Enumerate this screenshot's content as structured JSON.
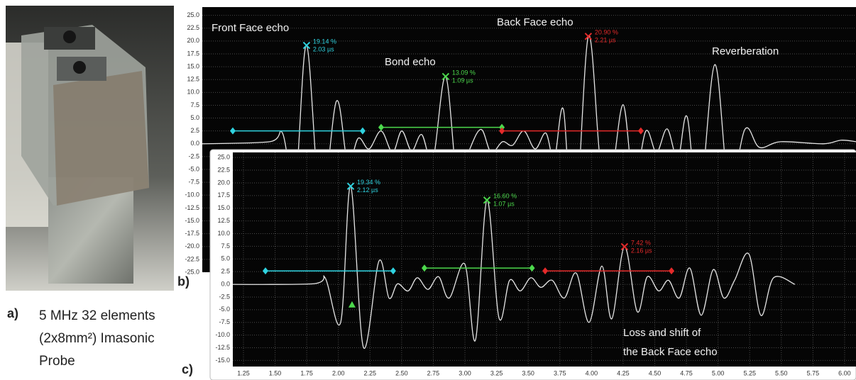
{
  "figure": {
    "a": "a)",
    "b": "b)",
    "c": "c)",
    "caption": [
      "5 MHz 32 elements",
      "(2x8mm²) Imasonic",
      "Probe"
    ]
  },
  "chart_data": [
    {
      "type": "line",
      "color": "#e6e6e6",
      "xlim": [
        0.925,
        6.09
      ],
      "ylim": [
        -25,
        26.6
      ],
      "yticks": [
        {
          "value": 25,
          "label": "25.0"
        },
        22.5,
        {
          "value": 20,
          "label": "20.0"
        },
        17.5,
        {
          "value": 15,
          "label": "15.0"
        },
        12.5,
        {
          "value": 10,
          "label": "10.0"
        },
        7.5,
        {
          "value": 5,
          "label": "5.0"
        },
        2.5,
        {
          "value": 0,
          "label": "0.0"
        },
        -2.5,
        {
          "value": -5,
          "label": "-5.0"
        },
        -7.5,
        {
          "value": -10,
          "label": "-10.0"
        },
        -12.5,
        {
          "value": -15,
          "label": "-15.0"
        },
        -17.5,
        {
          "value": -20,
          "label": "-20.0"
        },
        -22.5,
        {
          "value": -25,
          "label": "-25.0"
        }
      ],
      "grid": true,
      "x": [
        0.925,
        1.457,
        1.558,
        1.659,
        1.749,
        1.861,
        1.985,
        2.074,
        2.158,
        2.242,
        2.338,
        2.428,
        2.501,
        2.579,
        2.658,
        2.747,
        2.848,
        2.944,
        3.039,
        3.129,
        3.207,
        3.297,
        3.376,
        3.465,
        3.555,
        3.639,
        3.706,
        3.779,
        3.863,
        3.975,
        4.071,
        4.155,
        4.25,
        4.334,
        4.43,
        4.514,
        4.598,
        4.682,
        4.755,
        4.85,
        4.974,
        5.086,
        5.215,
        5.327,
        5.495,
        5.832,
        5.972,
        6.09
      ],
      "values": [
        0,
        0.4,
        2.1,
        -7.9,
        19.14,
        -12.4,
        8.3,
        -3.7,
        1.1,
        -1.0,
        2.5,
        -1.7,
        2.5,
        -1.4,
        1.8,
        -3.0,
        13.09,
        -7.9,
        -1.0,
        2.8,
        -1.7,
        0.4,
        -0.3,
        2.5,
        -1.0,
        2.1,
        -3.0,
        6.6,
        -18.7,
        20.9,
        -3.7,
        -6.5,
        7.6,
        -7.6,
        2.5,
        -1.7,
        2.9,
        -3.0,
        5.3,
        -12.0,
        15.4,
        -8.2,
        2.9,
        -0.7,
        0.4,
        0,
        0.7,
        0.4
      ],
      "gates": [
        {
          "color": "#2fd3e0",
          "x": [
            1.166,
            2.192
          ],
          "level": 2.5
        },
        {
          "color": "#4cd84c",
          "x": [
            2.338,
            3.292
          ],
          "level": 3.2
        },
        {
          "color": "#e52a2a",
          "x": [
            3.292,
            4.39
          ],
          "level": 2.5
        }
      ],
      "peaks": [
        {
          "color": "#2fd3e0",
          "x": 1.749,
          "y": 19.14,
          "value_label": "19.14 %",
          "time_label": "2.03 µs"
        },
        {
          "color": "#4cd84c",
          "x": 2.848,
          "y": 13.09,
          "value_label": "13.09 %",
          "time_label": "1.09 µs"
        },
        {
          "color": "#e52a2a",
          "x": 3.975,
          "y": 20.9,
          "value_label": "20.90 %",
          "time_label": "2.21 µs"
        }
      ],
      "triangles": [
        {
          "color": "#4cd84c",
          "x": 1.755,
          "y": -4.1
        }
      ],
      "annotations": [
        "Front Face echo",
        "Bond echo",
        "Back Face echo",
        "Reverberation"
      ]
    },
    {
      "type": "line",
      "color": "#e6e6e6",
      "xlim": [
        1.166,
        6.09
      ],
      "ylim": [
        -16.2,
        26
      ],
      "xticks": [
        1.25,
        {
          "value": 1.5,
          "label": "1.50"
        },
        1.75,
        {
          "value": 2,
          "label": "2.00"
        },
        2.25,
        {
          "value": 2.5,
          "label": "2.50"
        },
        2.75,
        {
          "value": 3,
          "label": "3.00"
        },
        3.25,
        {
          "value": 3.5,
          "label": "3.50"
        },
        3.75,
        {
          "value": 4,
          "label": "4.00"
        },
        4.25,
        {
          "value": 4.5,
          "label": "4.50"
        },
        4.75,
        {
          "value": 5,
          "label": "5.00"
        },
        5.25,
        {
          "value": 5.5,
          "label": "5.50"
        },
        5.75,
        {
          "value": 6,
          "label": "6.00"
        }
      ],
      "yticks": [
        {
          "value": 25,
          "label": "25.0"
        },
        22.5,
        {
          "value": 20,
          "label": "20.0"
        },
        17.5,
        {
          "value": 15,
          "label": "15.0"
        },
        12.5,
        {
          "value": 10,
          "label": "10.0"
        },
        7.5,
        {
          "value": 5,
          "label": "5.0"
        },
        2.5,
        {
          "value": 0,
          "label": "0.0"
        },
        -2.5,
        {
          "value": -5,
          "label": "-5.0"
        },
        -7.5,
        {
          "value": -10,
          "label": "-10.0"
        },
        -12.5,
        {
          "value": -15,
          "label": "-15.0"
        }
      ],
      "grid": true,
      "x": [
        1.009,
        1.794,
        1.895,
        2.018,
        2.097,
        2.198,
        2.321,
        2.4,
        2.467,
        2.551,
        2.624,
        2.708,
        2.792,
        2.876,
        2.999,
        3.083,
        3.174,
        3.269,
        3.353,
        3.437,
        3.521,
        3.6,
        3.689,
        3.785,
        3.88,
        3.981,
        4.082,
        4.16,
        4.261,
        4.362,
        4.441,
        4.531,
        4.609,
        4.693,
        4.777,
        4.867,
        4.962,
        5.046,
        5.131,
        5.243,
        5.338,
        5.439,
        5.607
      ],
      "values": [
        0,
        0.1,
        1.3,
        -7.5,
        19.34,
        -12.4,
        4.6,
        -2.7,
        0.1,
        -1.3,
        1.3,
        -1.0,
        1.5,
        -2.7,
        4.0,
        -11.0,
        16.6,
        -6.6,
        0.8,
        -1.3,
        1.3,
        -0.6,
        0.8,
        -2.7,
        2.2,
        -7.5,
        3.6,
        -6.8,
        7.42,
        -5.4,
        1.5,
        -1.3,
        0.8,
        -2.7,
        3.2,
        -6.1,
        2.9,
        -2.7,
        0.8,
        6.0,
        -6.1,
        1.3,
        0
      ],
      "gates": [
        {
          "color": "#2fd3e0",
          "x": [
            1.424,
            2.433
          ],
          "level": 2.65
        },
        {
          "color": "#4cd84c",
          "x": [
            2.68,
            3.53
          ],
          "level": 3.2
        },
        {
          "color": "#e52a2a",
          "x": [
            3.634,
            4.632
          ],
          "level": 2.65
        }
      ],
      "peaks": [
        {
          "color": "#2fd3e0",
          "x": 2.097,
          "y": 19.34,
          "value_label": "19.34 %",
          "time_label": "2.12 µs"
        },
        {
          "color": "#4cd84c",
          "x": 3.174,
          "y": 16.6,
          "value_label": "16.60 %",
          "time_label": "1.07 µs"
        },
        {
          "color": "#e52a2a",
          "x": 4.261,
          "y": 7.42,
          "value_label": "7.42 %",
          "time_label": "2.16 µs"
        }
      ],
      "triangles": [
        {
          "color": "#4cd84c",
          "x": 2.108,
          "y": -4.0
        }
      ],
      "annotations": [
        "Loss and shift of",
        "the Back Face echo"
      ]
    }
  ]
}
